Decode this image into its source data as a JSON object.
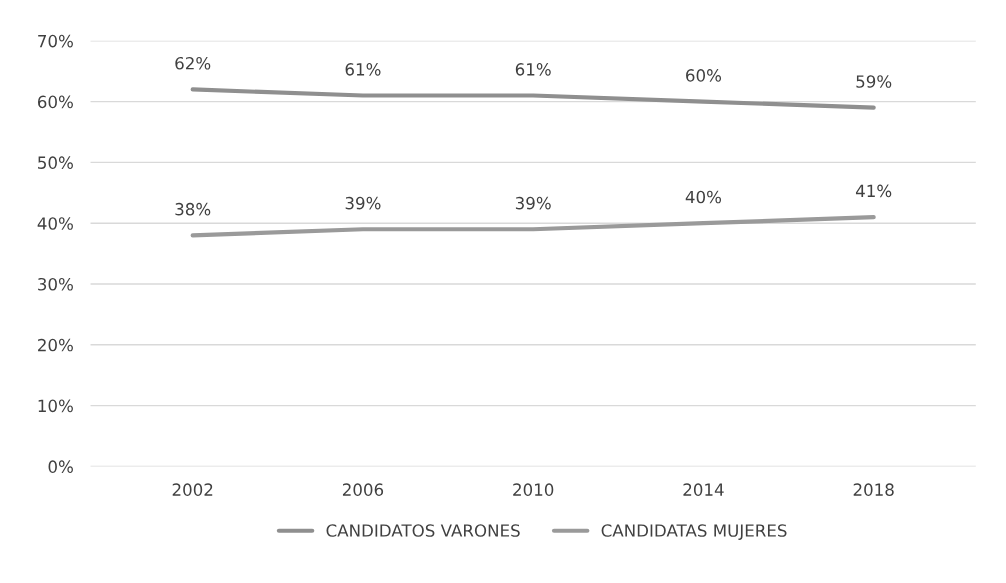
{
  "chart_data": {
    "type": "line",
    "categories": [
      "2002",
      "2006",
      "2010",
      "2014",
      "2018"
    ],
    "series": [
      {
        "name": "CANDIDATOS VARONES",
        "color": "#8f8f8f",
        "values": [
          62,
          61,
          61,
          60,
          59
        ],
        "value_labels": [
          "62%",
          "61%",
          "61%",
          "60%",
          "59%"
        ]
      },
      {
        "name": "CANDIDATAS MUJERES",
        "color": "#9a9a9a",
        "values": [
          38,
          39,
          39,
          40,
          41
        ],
        "value_labels": [
          "38%",
          "39%",
          "39%",
          "40%",
          "41%"
        ]
      }
    ],
    "ylim": [
      0,
      70
    ],
    "yticks": [
      {
        "value": 0,
        "label": "0%"
      },
      {
        "value": 10,
        "label": "10%"
      },
      {
        "value": 20,
        "label": "20%"
      },
      {
        "value": 30,
        "label": "30%"
      },
      {
        "value": 40,
        "label": "40%"
      },
      {
        "value": 50,
        "label": "50%"
      },
      {
        "value": 60,
        "label": "60%"
      },
      {
        "value": 70,
        "label": "70%"
      }
    ],
    "grid": "y",
    "legend": "bottom",
    "marker": "none",
    "line_style": "solid"
  }
}
